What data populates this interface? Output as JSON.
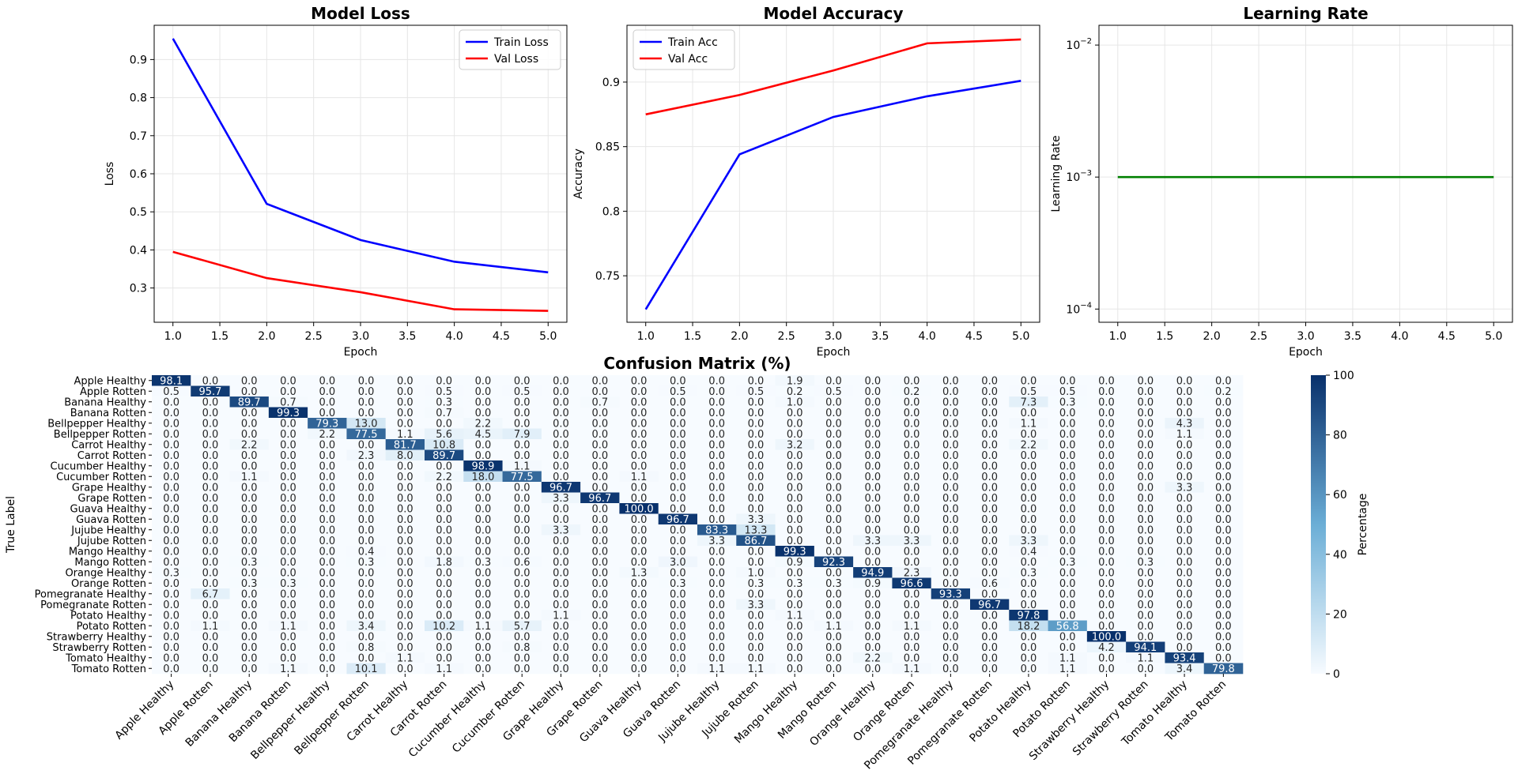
{
  "colors": {
    "train": "#0000ff",
    "val": "#ff0000",
    "lr": "#008000",
    "grid": "#e6e6e6",
    "cmap_low": "#f7fbff",
    "cmap_high": "#08306b"
  },
  "chart_data": [
    {
      "id": "loss",
      "type": "line",
      "title": "Model Loss",
      "xlabel": "Epoch",
      "ylabel": "Loss",
      "x": [
        1,
        2,
        3,
        4,
        5
      ],
      "series": [
        {
          "name": "Train Loss",
          "color": "#0000ff",
          "values": [
            0.955,
            0.521,
            0.426,
            0.369,
            0.341
          ]
        },
        {
          "name": "Val Loss",
          "color": "#ff0000",
          "values": [
            0.395,
            0.326,
            0.289,
            0.244,
            0.24
          ]
        }
      ],
      "xlim": [
        0.8,
        5.2
      ],
      "ylim": [
        0.21,
        0.99
      ],
      "xticks": [
        1.0,
        1.5,
        2.0,
        2.5,
        3.0,
        3.5,
        4.0,
        4.5,
        5.0
      ],
      "yticks": [
        0.3,
        0.4,
        0.5,
        0.6,
        0.7,
        0.8,
        0.9
      ],
      "grid": true,
      "legend": "top-right"
    },
    {
      "id": "acc",
      "type": "line",
      "title": "Model Accuracy",
      "xlabel": "Epoch",
      "ylabel": "Accuracy",
      "x": [
        1,
        2,
        3,
        4,
        5
      ],
      "series": [
        {
          "name": "Train Acc",
          "color": "#0000ff",
          "values": [
            0.724,
            0.844,
            0.873,
            0.889,
            0.901
          ]
        },
        {
          "name": "Val Acc",
          "color": "#ff0000",
          "values": [
            0.875,
            0.89,
            0.909,
            0.93,
            0.933
          ]
        }
      ],
      "xlim": [
        0.8,
        5.2
      ],
      "ylim": [
        0.714,
        0.944
      ],
      "xticks": [
        1.0,
        1.5,
        2.0,
        2.5,
        3.0,
        3.5,
        4.0,
        4.5,
        5.0
      ],
      "yticks": [
        0.75,
        0.8,
        0.85,
        0.9
      ],
      "grid": true,
      "legend": "top-left"
    },
    {
      "id": "lr",
      "type": "line",
      "title": "Learning Rate",
      "xlabel": "Epoch",
      "ylabel": "Learning Rate",
      "scale_y": "log",
      "x": [
        1,
        2,
        3,
        4,
        5
      ],
      "series": [
        {
          "color": "#008000",
          "values": [
            0.001,
            0.001,
            0.001,
            0.001,
            0.001
          ]
        }
      ],
      "xlim": [
        0.8,
        5.2
      ],
      "ylim_log10": [
        -4.1,
        -1.85
      ],
      "xticks": [
        1.0,
        1.5,
        2.0,
        2.5,
        3.0,
        3.5,
        4.0,
        4.5,
        5.0
      ],
      "ytick_labels": [
        "10",
        "10",
        "10"
      ],
      "ytick_exponents": [
        "−4",
        "−3",
        "−2"
      ],
      "ytick_values_log10": [
        -4,
        -3,
        -2
      ],
      "grid": true
    },
    {
      "id": "cm",
      "type": "heatmap",
      "title": "Confusion Matrix (%)",
      "ylabel": "True Label",
      "colorbar_label": "Percentage",
      "colorbar_ticks": [
        0,
        20,
        40,
        60,
        80,
        100
      ],
      "vmin": 0,
      "vmax": 100,
      "labels": [
        "Apple  Healthy",
        "Apple  Rotten",
        "Banana  Healthy",
        "Banana  Rotten",
        "Bellpepper  Healthy",
        "Bellpepper  Rotten",
        "Carrot  Healthy",
        "Carrot  Rotten",
        "Cucumber  Healthy",
        "Cucumber  Rotten",
        "Grape  Healthy",
        "Grape  Rotten",
        "Guava  Healthy",
        "Guava  Rotten",
        "Jujube  Healthy",
        "Jujube  Rotten",
        "Mango  Healthy",
        "Mango  Rotten",
        "Orange  Healthy",
        "Orange  Rotten",
        "Pomegranate  Healthy",
        "Pomegranate  Rotten",
        "Potato  Healthy",
        "Potato  Rotten",
        "Strawberry  Healthy",
        "Strawberry  Rotten",
        "Tomato  Healthy",
        "Tomato  Rotten"
      ],
      "matrix": [
        [
          "98.1",
          "0.0",
          "0.0",
          "0.0",
          "0.0",
          "0.0",
          "0.0",
          "0.0",
          "0.0",
          "0.0",
          "0.0",
          "0.0",
          "0.0",
          "0.0",
          "0.0",
          "0.0",
          "1.9",
          "0.0",
          "0.0",
          "0.0",
          "0.0",
          "0.0",
          "0.0",
          "0.0",
          "0.0",
          "0.0",
          "0.0",
          "0.0"
        ],
        [
          "0.5",
          "95.7",
          "0.0",
          "0.0",
          "0.0",
          "0.0",
          "0.0",
          "0.5",
          "0.0",
          "0.5",
          "0.0",
          "0.0",
          "0.0",
          "0.5",
          "0.0",
          "0.5",
          "0.2",
          "0.5",
          "0.0",
          "0.2",
          "0.0",
          "0.0",
          "0.5",
          "0.5",
          "0.0",
          "0.0",
          "0.0",
          "0.2"
        ],
        [
          "0.0",
          "0.0",
          "89.7",
          "0.7",
          "0.0",
          "0.0",
          "0.0",
          "0.3",
          "0.0",
          "0.0",
          "0.0",
          "0.7",
          "0.0",
          "0.0",
          "0.0",
          "0.0",
          "1.0",
          "0.0",
          "0.0",
          "0.0",
          "0.0",
          "0.0",
          "7.3",
          "0.3",
          "0.0",
          "0.0",
          "0.0",
          "0.0"
        ],
        [
          "0.0",
          "0.0",
          "0.0",
          "99.3",
          "0.0",
          "0.0",
          "0.0",
          "0.7",
          "0.0",
          "0.0",
          "0.0",
          "0.0",
          "0.0",
          "0.0",
          "0.0",
          "0.0",
          "0.0",
          "0.0",
          "0.0",
          "0.0",
          "0.0",
          "0.0",
          "0.0",
          "0.0",
          "0.0",
          "0.0",
          "0.0",
          "0.0"
        ],
        [
          "0.0",
          "0.0",
          "0.0",
          "0.0",
          "79.3",
          "13.0",
          "0.0",
          "0.0",
          "2.2",
          "0.0",
          "0.0",
          "0.0",
          "0.0",
          "0.0",
          "0.0",
          "0.0",
          "0.0",
          "0.0",
          "0.0",
          "0.0",
          "0.0",
          "0.0",
          "1.1",
          "0.0",
          "0.0",
          "0.0",
          "4.3",
          "0.0"
        ],
        [
          "0.0",
          "0.0",
          "0.0",
          "0.0",
          "2.2",
          "77.5",
          "1.1",
          "5.6",
          "4.5",
          "7.9",
          "0.0",
          "0.0",
          "0.0",
          "0.0",
          "0.0",
          "0.0",
          "0.0",
          "0.0",
          "0.0",
          "0.0",
          "0.0",
          "0.0",
          "0.0",
          "0.0",
          "0.0",
          "0.0",
          "1.1",
          "0.0"
        ],
        [
          "0.0",
          "0.0",
          "2.2",
          "0.0",
          "0.0",
          "0.0",
          "81.7",
          "10.8",
          "0.0",
          "0.0",
          "0.0",
          "0.0",
          "0.0",
          "0.0",
          "0.0",
          "0.0",
          "3.2",
          "0.0",
          "0.0",
          "0.0",
          "0.0",
          "0.0",
          "2.2",
          "0.0",
          "0.0",
          "0.0",
          "0.0",
          "0.0"
        ],
        [
          "0.0",
          "0.0",
          "0.0",
          "0.0",
          "0.0",
          "2.3",
          "8.0",
          "89.7",
          "0.0",
          "0.0",
          "0.0",
          "0.0",
          "0.0",
          "0.0",
          "0.0",
          "0.0",
          "0.0",
          "0.0",
          "0.0",
          "0.0",
          "0.0",
          "0.0",
          "0.0",
          "0.0",
          "0.0",
          "0.0",
          "0.0",
          "0.0"
        ],
        [
          "0.0",
          "0.0",
          "0.0",
          "0.0",
          "0.0",
          "0.0",
          "0.0",
          "0.0",
          "98.9",
          "1.1",
          "0.0",
          "0.0",
          "0.0",
          "0.0",
          "0.0",
          "0.0",
          "0.0",
          "0.0",
          "0.0",
          "0.0",
          "0.0",
          "0.0",
          "0.0",
          "0.0",
          "0.0",
          "0.0",
          "0.0",
          "0.0"
        ],
        [
          "0.0",
          "0.0",
          "1.1",
          "0.0",
          "0.0",
          "0.0",
          "0.0",
          "2.2",
          "18.0",
          "77.5",
          "0.0",
          "0.0",
          "1.1",
          "0.0",
          "0.0",
          "0.0",
          "0.0",
          "0.0",
          "0.0",
          "0.0",
          "0.0",
          "0.0",
          "0.0",
          "0.0",
          "0.0",
          "0.0",
          "0.0",
          "0.0"
        ],
        [
          "0.0",
          "0.0",
          "0.0",
          "0.0",
          "0.0",
          "0.0",
          "0.0",
          "0.0",
          "0.0",
          "0.0",
          "96.7",
          "0.0",
          "0.0",
          "0.0",
          "0.0",
          "0.0",
          "0.0",
          "0.0",
          "0.0",
          "0.0",
          "0.0",
          "0.0",
          "0.0",
          "0.0",
          "0.0",
          "0.0",
          "3.3",
          "0.0"
        ],
        [
          "0.0",
          "0.0",
          "0.0",
          "0.0",
          "0.0",
          "0.0",
          "0.0",
          "0.0",
          "0.0",
          "0.0",
          "3.3",
          "96.7",
          "0.0",
          "0.0",
          "0.0",
          "0.0",
          "0.0",
          "0.0",
          "0.0",
          "0.0",
          "0.0",
          "0.0",
          "0.0",
          "0.0",
          "0.0",
          "0.0",
          "0.0",
          "0.0"
        ],
        [
          "0.0",
          "0.0",
          "0.0",
          "0.0",
          "0.0",
          "0.0",
          "0.0",
          "0.0",
          "0.0",
          "0.0",
          "0.0",
          "0.0",
          "100.0",
          "0.0",
          "0.0",
          "0.0",
          "0.0",
          "0.0",
          "0.0",
          "0.0",
          "0.0",
          "0.0",
          "0.0",
          "0.0",
          "0.0",
          "0.0",
          "0.0",
          "0.0"
        ],
        [
          "0.0",
          "0.0",
          "0.0",
          "0.0",
          "0.0",
          "0.0",
          "0.0",
          "0.0",
          "0.0",
          "0.0",
          "0.0",
          "0.0",
          "0.0",
          "96.7",
          "0.0",
          "3.3",
          "0.0",
          "0.0",
          "0.0",
          "0.0",
          "0.0",
          "0.0",
          "0.0",
          "0.0",
          "0.0",
          "0.0",
          "0.0",
          "0.0"
        ],
        [
          "0.0",
          "0.0",
          "0.0",
          "0.0",
          "0.0",
          "0.0",
          "0.0",
          "0.0",
          "0.0",
          "0.0",
          "3.3",
          "0.0",
          "0.0",
          "0.0",
          "83.3",
          "13.3",
          "0.0",
          "0.0",
          "0.0",
          "0.0",
          "0.0",
          "0.0",
          "0.0",
          "0.0",
          "0.0",
          "0.0",
          "0.0",
          "0.0"
        ],
        [
          "0.0",
          "0.0",
          "0.0",
          "0.0",
          "0.0",
          "0.0",
          "0.0",
          "0.0",
          "0.0",
          "0.0",
          "0.0",
          "0.0",
          "0.0",
          "0.0",
          "3.3",
          "86.7",
          "0.0",
          "0.0",
          "3.3",
          "3.3",
          "0.0",
          "0.0",
          "3.3",
          "0.0",
          "0.0",
          "0.0",
          "0.0",
          "0.0"
        ],
        [
          "0.0",
          "0.0",
          "0.0",
          "0.0",
          "0.0",
          "0.4",
          "0.0",
          "0.0",
          "0.0",
          "0.0",
          "0.0",
          "0.0",
          "0.0",
          "0.0",
          "0.0",
          "0.0",
          "99.3",
          "0.0",
          "0.0",
          "0.0",
          "0.0",
          "0.0",
          "0.4",
          "0.0",
          "0.0",
          "0.0",
          "0.0",
          "0.0"
        ],
        [
          "0.0",
          "0.0",
          "0.3",
          "0.0",
          "0.0",
          "0.3",
          "0.0",
          "1.8",
          "0.3",
          "0.6",
          "0.0",
          "0.0",
          "0.0",
          "3.0",
          "0.0",
          "0.0",
          "0.9",
          "92.3",
          "0.0",
          "0.0",
          "0.0",
          "0.0",
          "0.0",
          "0.3",
          "0.0",
          "0.3",
          "0.0",
          "0.0"
        ],
        [
          "0.3",
          "0.0",
          "0.0",
          "0.0",
          "0.0",
          "0.0",
          "0.0",
          "0.0",
          "0.0",
          "0.0",
          "0.0",
          "0.0",
          "1.3",
          "0.0",
          "0.0",
          "1.0",
          "0.0",
          "0.0",
          "94.9",
          "2.3",
          "0.0",
          "0.0",
          "0.3",
          "0.0",
          "0.0",
          "0.0",
          "0.0",
          "0.0"
        ],
        [
          "0.0",
          "0.0",
          "0.3",
          "0.3",
          "0.0",
          "0.0",
          "0.0",
          "0.0",
          "0.0",
          "0.0",
          "0.0",
          "0.0",
          "0.0",
          "0.3",
          "0.0",
          "0.3",
          "0.3",
          "0.3",
          "0.9",
          "96.6",
          "0.0",
          "0.6",
          "0.0",
          "0.0",
          "0.0",
          "0.0",
          "0.0",
          "0.0"
        ],
        [
          "0.0",
          "6.7",
          "0.0",
          "0.0",
          "0.0",
          "0.0",
          "0.0",
          "0.0",
          "0.0",
          "0.0",
          "0.0",
          "0.0",
          "0.0",
          "0.0",
          "0.0",
          "0.0",
          "0.0",
          "0.0",
          "0.0",
          "0.0",
          "93.3",
          "0.0",
          "0.0",
          "0.0",
          "0.0",
          "0.0",
          "0.0",
          "0.0"
        ],
        [
          "0.0",
          "0.0",
          "0.0",
          "0.0",
          "0.0",
          "0.0",
          "0.0",
          "0.0",
          "0.0",
          "0.0",
          "0.0",
          "0.0",
          "0.0",
          "0.0",
          "0.0",
          "3.3",
          "0.0",
          "0.0",
          "0.0",
          "0.0",
          "0.0",
          "96.7",
          "0.0",
          "0.0",
          "0.0",
          "0.0",
          "0.0",
          "0.0"
        ],
        [
          "0.0",
          "0.0",
          "0.0",
          "0.0",
          "0.0",
          "0.0",
          "0.0",
          "0.0",
          "0.0",
          "0.0",
          "1.1",
          "0.0",
          "0.0",
          "0.0",
          "0.0",
          "0.0",
          "1.1",
          "0.0",
          "0.0",
          "0.0",
          "0.0",
          "0.0",
          "97.8",
          "0.0",
          "0.0",
          "0.0",
          "0.0",
          "0.0"
        ],
        [
          "0.0",
          "1.1",
          "0.0",
          "1.1",
          "0.0",
          "3.4",
          "0.0",
          "10.2",
          "1.1",
          "5.7",
          "0.0",
          "0.0",
          "0.0",
          "0.0",
          "0.0",
          "0.0",
          "0.0",
          "1.1",
          "0.0",
          "1.1",
          "0.0",
          "0.0",
          "18.2",
          "56.8",
          "0.0",
          "0.0",
          "0.0",
          "0.0"
        ],
        [
          "0.0",
          "0.0",
          "0.0",
          "0.0",
          "0.0",
          "0.0",
          "0.0",
          "0.0",
          "0.0",
          "0.0",
          "0.0",
          "0.0",
          "0.0",
          "0.0",
          "0.0",
          "0.0",
          "0.0",
          "0.0",
          "0.0",
          "0.0",
          "0.0",
          "0.0",
          "0.0",
          "0.0",
          "100.0",
          "0.0",
          "0.0",
          "0.0"
        ],
        [
          "0.0",
          "0.0",
          "0.0",
          "0.0",
          "0.0",
          "0.8",
          "0.0",
          "0.0",
          "0.0",
          "0.8",
          "0.0",
          "0.0",
          "0.0",
          "0.0",
          "0.0",
          "0.0",
          "0.0",
          "0.0",
          "0.0",
          "0.0",
          "0.0",
          "0.0",
          "0.0",
          "0.0",
          "4.2",
          "94.1",
          "0.0",
          "0.0"
        ],
        [
          "0.0",
          "0.0",
          "0.0",
          "0.0",
          "0.0",
          "0.0",
          "1.1",
          "0.0",
          "0.0",
          "0.0",
          "0.0",
          "0.0",
          "0.0",
          "0.0",
          "0.0",
          "0.0",
          "0.0",
          "0.0",
          "2.2",
          "0.0",
          "0.0",
          "0.0",
          "0.0",
          "1.1",
          "0.0",
          "1.1",
          "93.4",
          "0.0"
        ],
        [
          "0.0",
          "0.0",
          "0.0",
          "1.1",
          "0.0",
          "10.1",
          "0.0",
          "1.1",
          "0.0",
          "0.0",
          "0.0",
          "0.0",
          "0.0",
          "0.0",
          "1.1",
          "1.1",
          "0.0",
          "0.0",
          "0.0",
          "1.1",
          "0.0",
          "0.0",
          "0.0",
          "1.1",
          "0.0",
          "0.0",
          "3.4",
          "79.8"
        ]
      ]
    }
  ]
}
